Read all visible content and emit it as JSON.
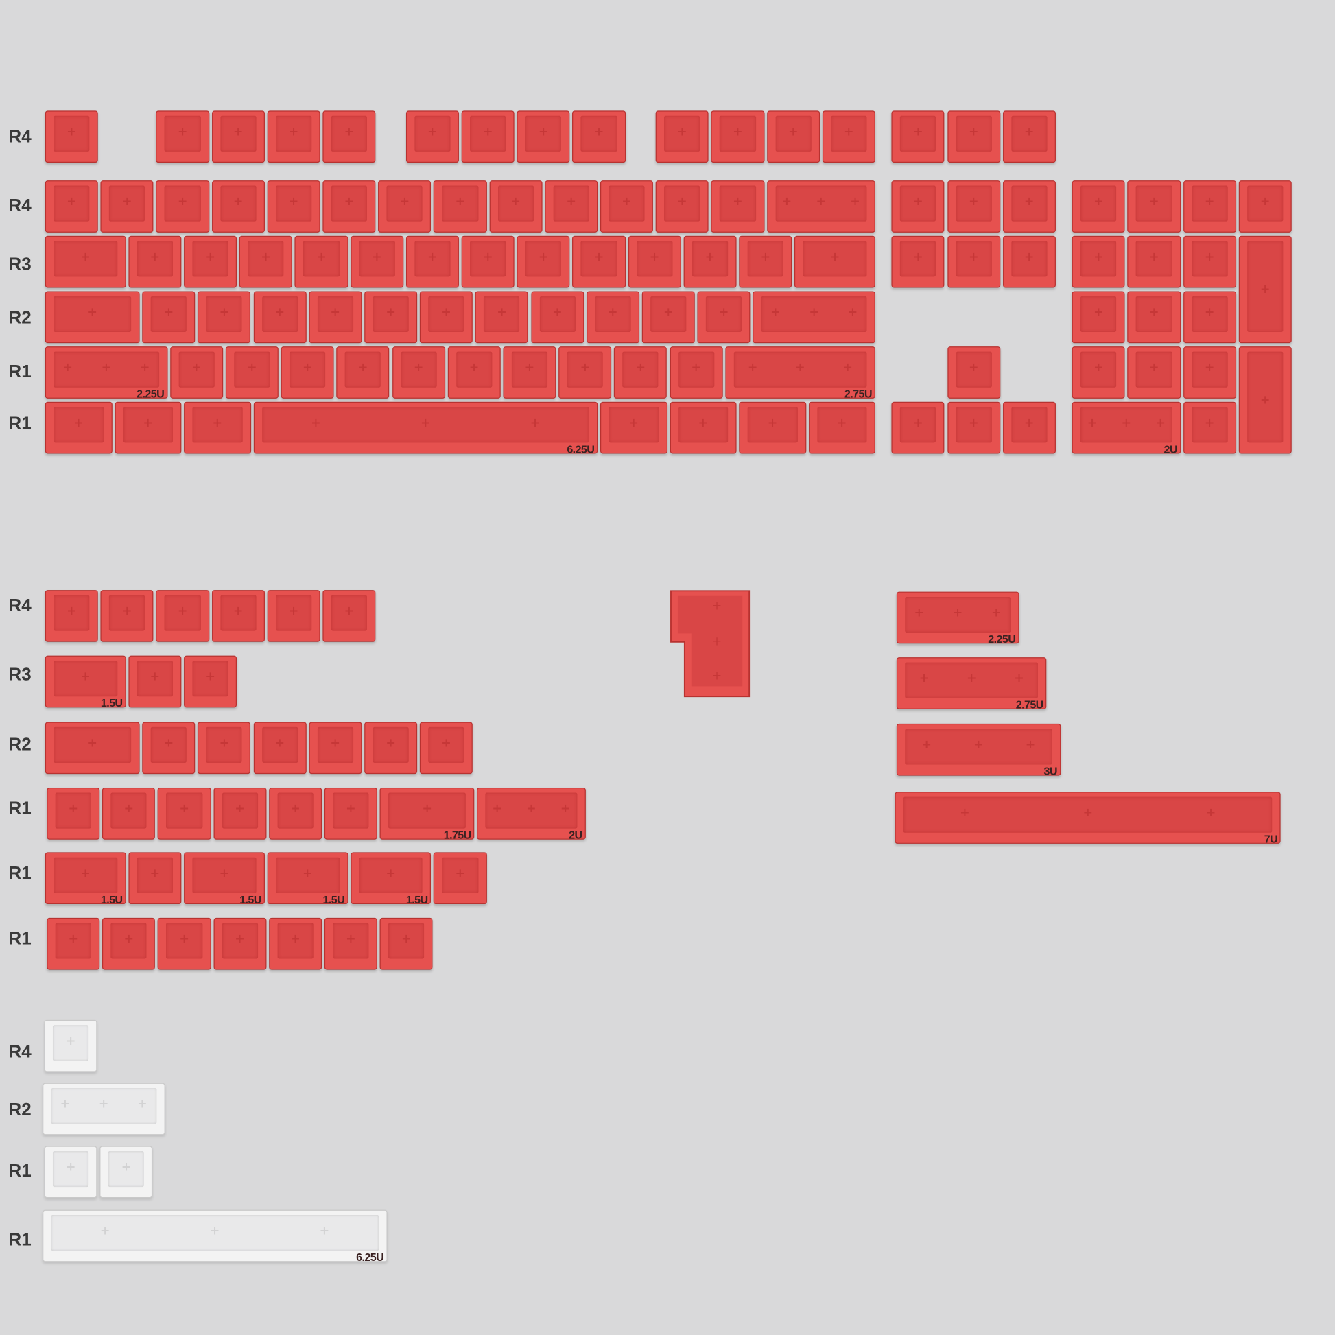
{
  "colors": {
    "background": "#d9d9da",
    "keycap_red": "#e6514f",
    "keycap_white": "#f3f3f3"
  },
  "row_labels": [
    "R4",
    "R4",
    "R3",
    "R2",
    "R1",
    "R1",
    "R4",
    "R3",
    "R2",
    "R1",
    "R1",
    "R1",
    "R4",
    "R2",
    "R1",
    "R1"
  ],
  "size_labels": {
    "lshift": "2.25U",
    "rshift": "2.75U",
    "space": "6.25U",
    "num0": "2U",
    "s2_r3_tab": "1.5U",
    "s2_r1a_175": "1.75U",
    "s2_r1a_2": "2U",
    "s2_r1b_1": "1.5U",
    "s2_r1b_2": "1.5U",
    "s2_r1b_3": "1.5U",
    "s2_r1b_4": "1.5U",
    "right_225": "2.25U",
    "right_275": "2.75U",
    "right_3": "3U",
    "right_7": "7U",
    "white_space": "6.25U"
  },
  "keycap_mark_icon": "plus-stem-icon"
}
